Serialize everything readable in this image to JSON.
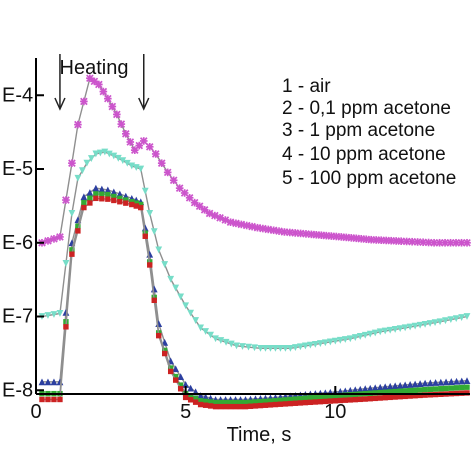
{
  "chart_data": {
    "type": "line",
    "xlabel": "Time, s",
    "ylabel": "",
    "xlim": [
      0,
      14.5
    ],
    "ylim": [
      8.9e-09,
      0.00032
    ],
    "y_scale": "log",
    "grid": false,
    "legend_placement": "top-right",
    "x_ticks": [
      {
        "value": 0,
        "label": "0"
      },
      {
        "value": 5,
        "label": "5"
      },
      {
        "value": 10,
        "label": "10"
      }
    ],
    "y_ticks": [
      {
        "value": 1e-08,
        "label": "E-8"
      },
      {
        "value": 1e-07,
        "label": "E-7"
      },
      {
        "value": 1e-06,
        "label": "E-6"
      },
      {
        "value": 1e-05,
        "label": "E-5"
      },
      {
        "value": 0.0001,
        "label": "E-4"
      }
    ],
    "annotations": [
      {
        "text": "Heating",
        "arrow_x": [
          0.8,
          3.6
        ]
      }
    ],
    "series": [
      {
        "name": "1 - air",
        "color": "#cc55cc",
        "marker": "cross",
        "x": [
          0.2,
          0.8,
          1.2,
          1.4,
          1.8,
          2.1,
          2.4,
          2.7,
          3.0,
          3.3,
          3.6,
          3.8,
          4.0,
          4.4,
          4.8,
          5.3,
          5.8,
          6.5,
          7.4,
          8.3,
          9.2,
          10.2,
          11.2,
          12.2,
          13.3,
          14.4
        ],
        "y": [
          1e-06,
          1.2e-06,
          1.2e-05,
          4e-05,
          0.00017,
          0.00014,
          9e-05,
          5.5e-05,
          3e-05,
          1.8e-05,
          2.4e-05,
          2e-05,
          1.6e-05,
          9e-06,
          5.5e-06,
          3.5e-06,
          2.5e-06,
          1.9e-06,
          1.6e-06,
          1.4e-06,
          1.3e-06,
          1.2e-06,
          1.1e-06,
          1.05e-06,
          1e-06,
          1e-06
        ]
      },
      {
        "name": "2 - 0,1 ppm acetone",
        "color": "#77ddc8",
        "marker": "triangle-down",
        "x": [
          0.2,
          0.8,
          1.2,
          1.4,
          1.7,
          2.0,
          2.3,
          2.6,
          2.9,
          3.2,
          3.5,
          3.8,
          4.1,
          4.5,
          5.0,
          5.5,
          6.0,
          6.7,
          7.5,
          8.5,
          9.5,
          10.5,
          11.5,
          12.5,
          13.5,
          14.4
        ],
        "y": [
          1e-07,
          1.1e-07,
          2.5e-06,
          7.5e-06,
          1.2e-05,
          1.6e-05,
          1.7e-05,
          1.5e-05,
          1.3e-05,
          1.1e-05,
          1e-05,
          2.5e-06,
          8e-07,
          3.2e-07,
          1.4e-07,
          7e-08,
          5e-08,
          4e-08,
          3.7e-08,
          3.7e-08,
          4.3e-08,
          5e-08,
          6.2e-08,
          7.2e-08,
          8.5e-08,
          1e-07
        ]
      },
      {
        "name": "3 - 1 ppm acetone",
        "color": "#2c3fa0",
        "marker": "triangle-up",
        "x": [
          0.2,
          0.8,
          1.2,
          1.6,
          2.0,
          2.4,
          2.8,
          3.2,
          3.5,
          3.8,
          4.1,
          4.5,
          5.0,
          5.5,
          6.0,
          7.0,
          8.0,
          9.0,
          10.0,
          11.0,
          12.0,
          13.0,
          14.4
        ],
        "y": [
          1.3e-08,
          1.3e-08,
          1e-06,
          4.2e-06,
          5.5e-06,
          5.2e-06,
          4.6e-06,
          4e-06,
          3.6e-06,
          7e-07,
          8e-08,
          2.5e-08,
          1.2e-08,
          8.5e-09,
          7.5e-09,
          7.5e-09,
          8e-09,
          8.8e-09,
          9.5e-09,
          1.05e-08,
          1.15e-08,
          1.25e-08,
          1.35e-08
        ]
      },
      {
        "name": "4 - 10 ppm acetone",
        "color": "#33aa33",
        "marker": "square",
        "x": [
          0.2,
          0.8,
          1.2,
          1.6,
          2.0,
          2.4,
          2.8,
          3.2,
          3.5,
          3.8,
          4.1,
          4.5,
          5.0,
          5.5,
          6.0,
          7.0,
          8.0,
          9.0,
          10.0,
          11.0,
          12.0,
          13.0,
          14.4
        ],
        "y": [
          9e-09,
          9e-09,
          8e-07,
          3.5e-06,
          4.6e-06,
          4.5e-06,
          4e-06,
          3.6e-06,
          3.3e-06,
          5.5e-07,
          6e-08,
          2e-08,
          9e-09,
          7.2e-09,
          6.8e-09,
          6.8e-09,
          7.2e-09,
          7.8e-09,
          8.4e-09,
          9e-09,
          9.6e-09,
          1.02e-08,
          1.1e-08
        ]
      },
      {
        "name": "5 - 100 ppm acetone",
        "color": "#cc2222",
        "marker": "square",
        "x": [
          0.2,
          0.8,
          1.2,
          1.6,
          2.0,
          2.4,
          2.8,
          3.2,
          3.5,
          3.8,
          4.1,
          4.5,
          5.0,
          5.5,
          6.0,
          7.0,
          8.0,
          9.0,
          10.0,
          11.0,
          12.0,
          13.0,
          14.4
        ],
        "y": [
          7.5e-09,
          7.5e-09,
          7e-07,
          3e-06,
          4e-06,
          3.9e-06,
          3.6e-06,
          3.3e-06,
          3e-06,
          5e-07,
          5.5e-08,
          1.8e-08,
          8e-09,
          6.4e-09,
          6e-09,
          6e-09,
          6.4e-09,
          6.8e-09,
          7.2e-09,
          7.6e-09,
          8.1e-09,
          8.6e-09,
          9.2e-09
        ]
      }
    ]
  }
}
